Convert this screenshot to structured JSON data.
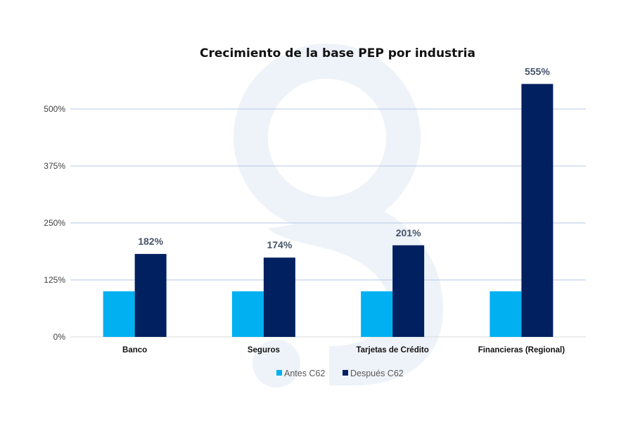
{
  "chart_data": {
    "type": "bar",
    "title": "Crecimiento de la base PEP por industria",
    "xlabel": "",
    "ylabel": "",
    "categories": [
      "Banco",
      "Seguros",
      "Tarjetas de Crédito",
      "Financieras (Regional)"
    ],
    "series": [
      {
        "name": "Antes C62",
        "color": "#00b0f0",
        "values": [
          100,
          100,
          100,
          100
        ],
        "data_labels": [
          "",
          "",
          "",
          ""
        ]
      },
      {
        "name": "Después C62",
        "color": "#002060",
        "values": [
          182,
          174,
          201,
          555
        ],
        "data_labels": [
          "182%",
          "174%",
          "201%",
          "555%"
        ]
      }
    ],
    "yticks": [
      0,
      125,
      250,
      375,
      500
    ],
    "ytick_labels": [
      "0%",
      "125%",
      "250%",
      "375%",
      "500%"
    ],
    "ylim": [
      0,
      555
    ],
    "grid": true,
    "gridline_color": "#b4c7e7",
    "legend_position": "bottom",
    "watermark_color": "#eef3f9"
  }
}
